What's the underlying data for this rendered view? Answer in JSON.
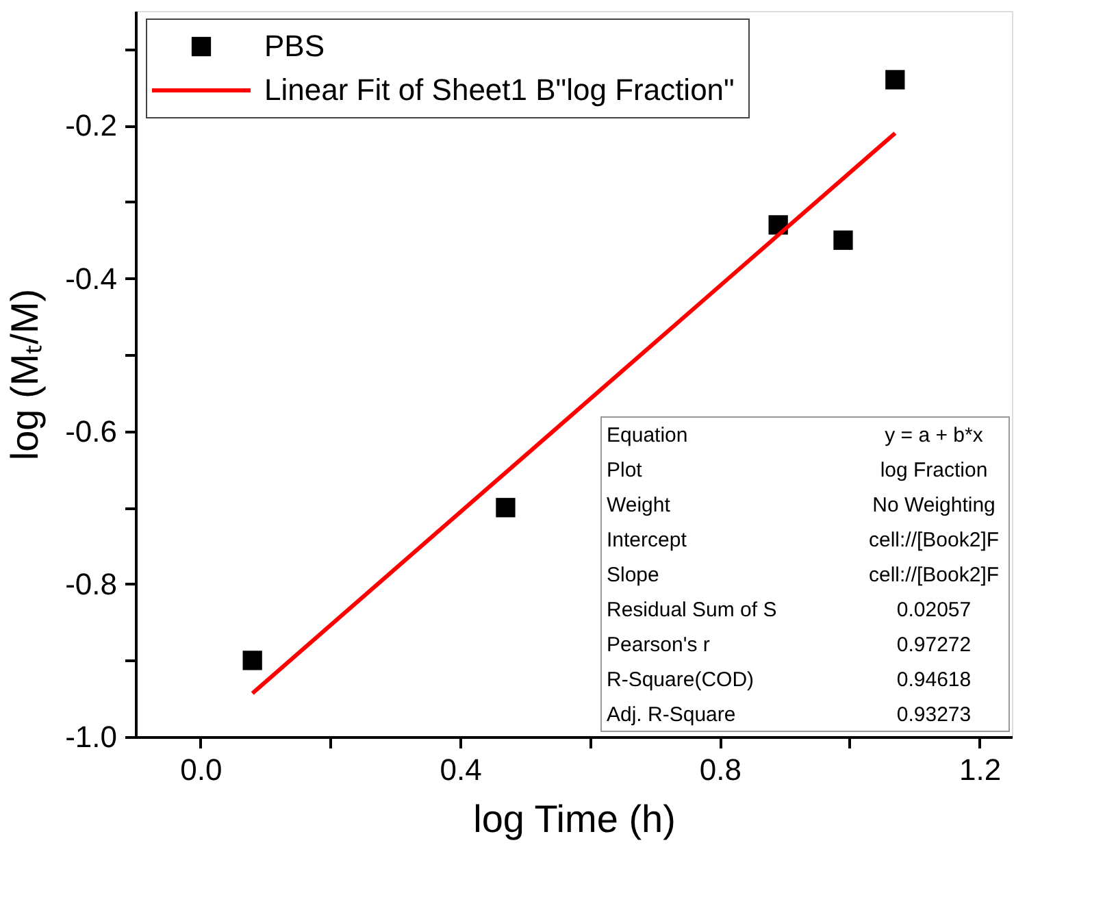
{
  "chart_data": {
    "type": "scatter",
    "xlabel": "log Time (h)",
    "ylabel": "log (Mₜ/M)",
    "xlim": [
      -0.1,
      1.25
    ],
    "ylim": [
      -1.0,
      -0.05
    ],
    "xticks": [
      {
        "value": 0,
        "label": "0.0"
      },
      {
        "value": 0.2,
        "label": null
      },
      0.4,
      {
        "value": 0.6,
        "label": null
      },
      0.8,
      {
        "value": 1.0,
        "label": null
      },
      1.2
    ],
    "yticks": [
      {
        "value": -1.0,
        "label": "-1.0"
      },
      {
        "value": -0.9,
        "label": null
      },
      -0.8,
      {
        "value": -0.7,
        "label": null
      },
      -0.6,
      {
        "value": -0.5,
        "label": null
      },
      -0.4,
      {
        "value": -0.3,
        "label": null
      },
      -0.2,
      {
        "value": -0.1,
        "label": null
      }
    ],
    "grid": false,
    "legend": "top left",
    "series": [
      {
        "name": "PBS",
        "type": "scatter",
        "marker": "square",
        "color": "#000000",
        "x": [
          0.08,
          0.47,
          0.89,
          0.99,
          1.07
        ],
        "values": [
          -0.9,
          -0.7,
          -0.33,
          -0.35,
          -0.14
        ]
      },
      {
        "name": "Linear Fit of Sheet1 B\"log Fraction\"",
        "type": "line",
        "line_style": "solid",
        "color": "#ff0000",
        "x": [
          0.08,
          1.07
        ],
        "values": [
          -0.943,
          -0.21
        ]
      }
    ],
    "annotations": [
      "Equation",
      "y = a + b*x",
      "Plot",
      "log Fraction",
      "Weight",
      "No Weighting",
      "Intercept",
      "cell://[Book2]F",
      "Slope",
      "cell://[Book2]F",
      "Residual Sum of S",
      "0.02057",
      "Pearson's r",
      "0.97272",
      "R-Square(COD)",
      "0.94618",
      "Adj. R-Square",
      "0.93273"
    ]
  }
}
